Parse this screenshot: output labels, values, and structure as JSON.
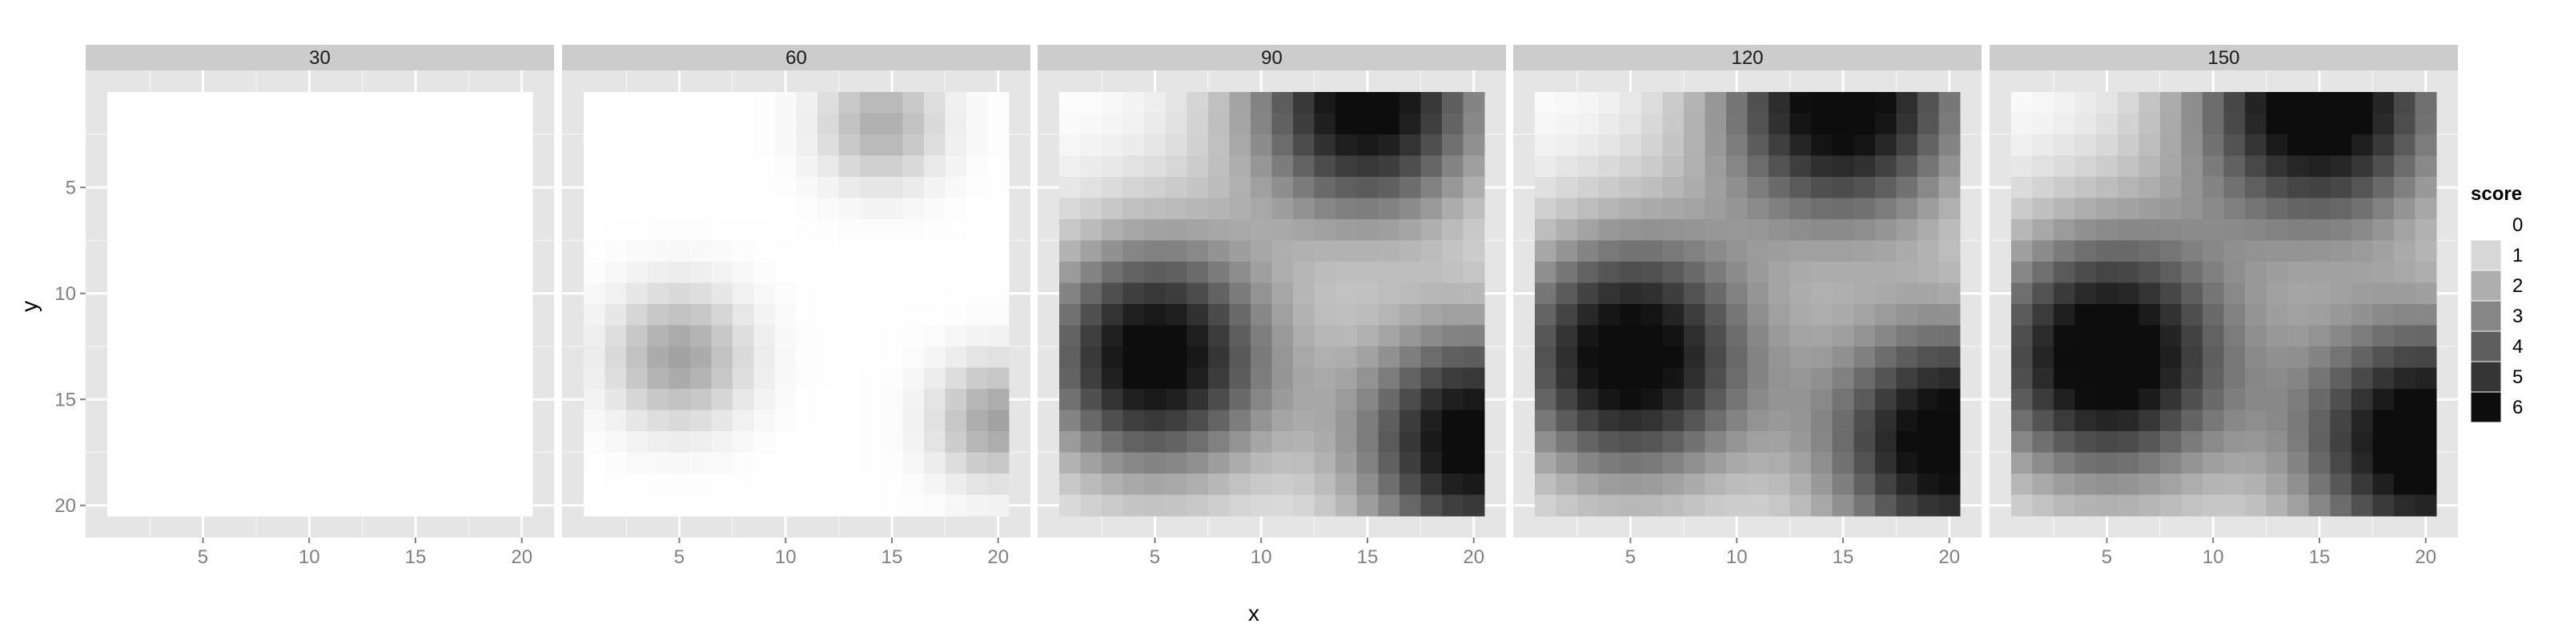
{
  "chart_data": {
    "type": "heatmap",
    "facet_variable": "",
    "panels": [
      {
        "label": "30",
        "sources": []
      },
      {
        "label": "60",
        "sources": [
          {
            "x": 5,
            "y": 13,
            "amp": 2.3,
            "sigma": 2.2
          },
          {
            "x": 14.5,
            "y": 2,
            "amp": 2.0,
            "sigma": 2.0
          },
          {
            "x": 20,
            "y": 16,
            "amp": 2.3,
            "sigma": 2.0
          }
        ]
      },
      {
        "label": "90",
        "sources": [
          {
            "x": 5,
            "y": 13,
            "amp": 6.4,
            "sigma": 4.1
          },
          {
            "x": 15,
            "y": 1,
            "amp": 6.4,
            "sigma": 4.1
          },
          {
            "x": 20,
            "y": 17,
            "amp": 6.4,
            "sigma": 4.1
          }
        ]
      },
      {
        "label": "120",
        "sources": [
          {
            "x": 5,
            "y": 13,
            "amp": 6.6,
            "sigma": 4.3
          },
          {
            "x": 15,
            "y": 1,
            "amp": 6.6,
            "sigma": 4.3
          },
          {
            "x": 20,
            "y": 17,
            "amp": 6.6,
            "sigma": 4.3
          }
        ]
      },
      {
        "label": "150",
        "sources": [
          {
            "x": 5,
            "y": 13,
            "amp": 6.8,
            "sigma": 4.4
          },
          {
            "x": 15,
            "y": 1,
            "amp": 6.8,
            "sigma": 4.4
          },
          {
            "x": 20,
            "y": 17,
            "amp": 6.8,
            "sigma": 4.4
          }
        ]
      }
    ],
    "x_range": [
      1,
      20
    ],
    "y_range": [
      1,
      20
    ],
    "y_reversed": true,
    "x_ticks": [
      5,
      10,
      15,
      20
    ],
    "y_ticks": [
      5,
      10,
      15,
      20
    ],
    "xlabel": "x",
    "ylabel": "y",
    "legend": {
      "title": "score",
      "position": "right",
      "breaks": [
        "0",
        "1",
        "2",
        "3",
        "4",
        "5",
        "6"
      ]
    },
    "fill_low": "#ffffff",
    "fill_high": "#0d0d0d",
    "panel_background": "#e5e5e5",
    "strip_background": "#cccccc",
    "grid": true
  }
}
